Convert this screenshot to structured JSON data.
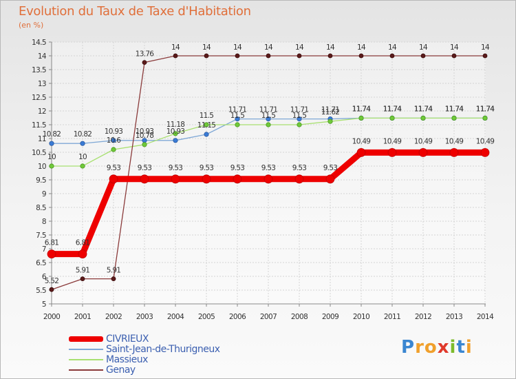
{
  "header": {
    "title": "Evolution du Taux de Taxe d'Habitation",
    "subtitle": "(en %)"
  },
  "brand": {
    "logo_letters": [
      "P",
      "r",
      "o",
      "x",
      "i",
      "t",
      "i"
    ],
    "logo_colors": [
      "#3a86d1",
      "#f0a02c",
      "#f0a02c",
      "#e03a2c",
      "#7dbb2c",
      "#3a86d1",
      "#f0a02c"
    ]
  },
  "chart_data": {
    "type": "line",
    "title": "Evolution du Taux de Taxe d'Habitation",
    "ylabel": "(en %)",
    "xlabel": "",
    "ylim": [
      5,
      14.5
    ],
    "yticks": [
      "5",
      "5.5",
      "6",
      "6.5",
      "7",
      "7.5",
      "8",
      "8.5",
      "9",
      "9.5",
      "10",
      "10.5",
      "11",
      "11.5",
      "12",
      "12.5",
      "13",
      "13.5",
      "14",
      "14.5"
    ],
    "categories": [
      "2000",
      "2001",
      "2002",
      "2003",
      "2004",
      "2005",
      "2006",
      "2007",
      "2008",
      "2009",
      "2010",
      "2011",
      "2012",
      "2013",
      "2014"
    ],
    "grid": true,
    "series": [
      {
        "name": "CIVRIEUX",
        "color": "#ee0000",
        "marker_color": "#ee0000",
        "values": [
          6.81,
          6.81,
          9.53,
          9.53,
          9.53,
          9.53,
          9.53,
          9.53,
          9.53,
          9.53,
          10.49,
          10.49,
          10.49,
          10.49,
          10.49
        ],
        "labels": [
          "6.81",
          "6.81",
          "9.53",
          "9.53",
          "9.53",
          "9.53",
          "9.53",
          "9.53",
          "9.53",
          "9.53",
          "10.49",
          "10.49",
          "10.49",
          "10.49",
          "10.49"
        ]
      },
      {
        "name": "Saint-Jean-de-Thurigneux",
        "color": "#7fa8d6",
        "marker_color": "#3a7bd5",
        "values": [
          10.82,
          10.82,
          10.93,
          10.93,
          10.93,
          11.15,
          11.71,
          11.71,
          11.71,
          11.71,
          11.74,
          11.74,
          11.74,
          11.74,
          11.74
        ],
        "labels": [
          "10.82",
          "10.82",
          "10.93",
          "10.93",
          "10.93",
          "11.15",
          "11.71",
          "11.71",
          "11.71",
          "11.71",
          "11.74",
          "11.74",
          "11.74",
          "11.74",
          "11.74"
        ]
      },
      {
        "name": "Massieux",
        "color": "#a8e070",
        "marker_color": "#70c83a",
        "values": [
          10,
          10,
          10.6,
          10.78,
          11.18,
          11.5,
          11.5,
          11.5,
          11.5,
          11.62,
          11.74,
          11.74,
          11.74,
          11.74,
          11.74
        ],
        "labels": [
          "10",
          "10",
          "10.6",
          "10.78",
          "11.18",
          "11.5",
          "11.5",
          "11.5",
          "11.5",
          "11.62",
          "11.74",
          "11.74",
          "11.74",
          "11.74",
          "11.74"
        ]
      },
      {
        "name": "Genay",
        "color": "#8a3a3a",
        "marker_color": "#5a1a1a",
        "values": [
          5.52,
          5.91,
          5.91,
          13.76,
          14,
          14,
          14,
          14,
          14,
          14,
          14,
          14,
          14,
          14,
          14
        ],
        "labels": [
          "5.52",
          "5.91",
          "5.91",
          "13.76",
          "14",
          "14",
          "14",
          "14",
          "14",
          "14",
          "14",
          "14",
          "14",
          "14",
          "14"
        ]
      }
    ]
  }
}
